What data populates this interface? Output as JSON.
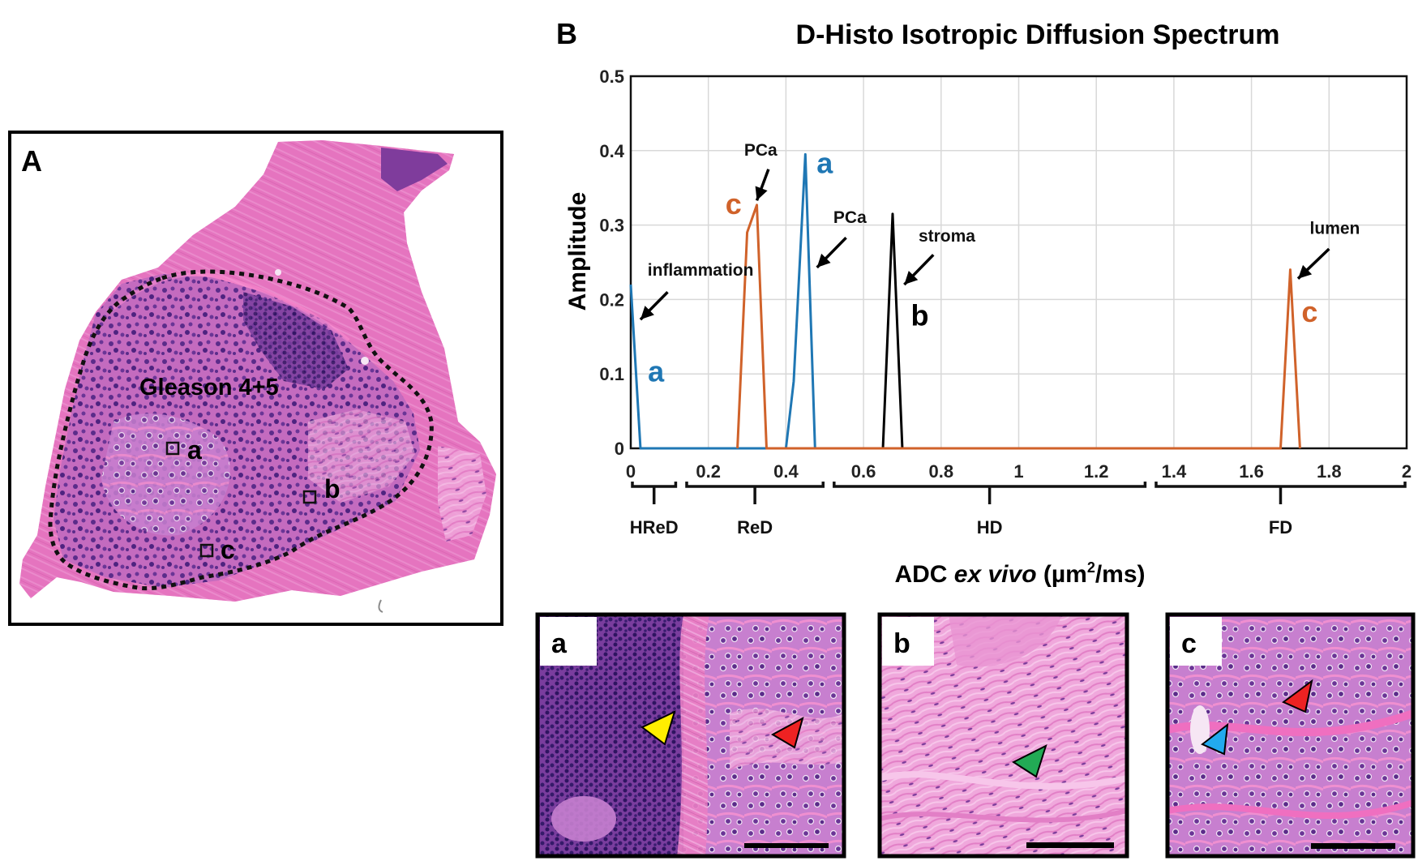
{
  "panel_a": {
    "letter": "A",
    "region_label": "Gleason 4+5",
    "roi_labels": [
      "a",
      "b",
      "c"
    ],
    "colors": {
      "tissue_pink": "#e06fb8",
      "tumor_purple": "#9a5cb8",
      "outline": "#111111"
    }
  },
  "panel_b": {
    "letter": "B",
    "colors": {
      "a": "#1f77b4",
      "b": "#000000",
      "c": "#d0622a"
    }
  },
  "chart_data": {
    "type": "line",
    "title": "D-Histo Isotropic Diffusion Spectrum",
    "xlabel_prefix": "ADC ",
    "xlabel_italic": "ex vivo",
    "xlabel_unit_a": " (µm",
    "xlabel_sup": "2",
    "xlabel_unit_b": "/ms)",
    "ylabel": "Amplitude",
    "xlim": [
      0,
      2
    ],
    "ylim": [
      0,
      0.5
    ],
    "grid": true,
    "xticks": [
      0,
      0.2,
      0.4,
      0.6,
      0.8,
      1,
      1.2,
      1.4,
      1.6,
      1.8,
      2
    ],
    "xtick_labels": [
      "0",
      "0.2",
      "0.4",
      "0.6",
      "0.8",
      "1",
      "1.2",
      "1.4",
      "1.6",
      "1.8",
      "2"
    ],
    "yticks": [
      0,
      0.1,
      0.2,
      0.3,
      0.4,
      0.5
    ],
    "ytick_labels": [
      "0",
      "0.1",
      "0.2",
      "0.3",
      "0.4",
      "0.5"
    ],
    "series": [
      {
        "name": "a",
        "color": "#1f77b4",
        "x": [
          0,
          0.025,
          0.4,
          0.42,
          0.45,
          0.475
        ],
        "y": [
          0.22,
          0,
          0,
          0.09,
          0.395,
          0
        ]
      },
      {
        "name": "b",
        "color": "#000000",
        "x": [
          0.65,
          0.675,
          0.7
        ],
        "y": [
          0,
          0.315,
          0
        ]
      },
      {
        "name": "c",
        "color": "#d0622a",
        "x": [
          0.275,
          0.3,
          0.325,
          0.35,
          0.65,
          0.7,
          1.675,
          1.7,
          1.725
        ],
        "y": [
          0,
          0.29,
          0.327,
          0,
          0,
          0,
          0,
          0.24,
          0
        ]
      }
    ],
    "curve_labels": [
      {
        "text": "a",
        "series": "a",
        "x": 0.5,
        "y": 0.37
      },
      {
        "text": "a",
        "series": "a",
        "x": 0.065,
        "y": 0.09
      },
      {
        "text": "c",
        "series": "c",
        "x": 0.265,
        "y": 0.315
      },
      {
        "text": "c",
        "series": "c",
        "x": 1.75,
        "y": 0.17
      },
      {
        "text": "b",
        "series": "b",
        "x": 0.745,
        "y": 0.165
      }
    ],
    "annotations": [
      {
        "text": "inflammation",
        "x": 0.18,
        "y": 0.232,
        "ax": 0.095,
        "ay": 0.21,
        "tx": 0.025,
        "ty": 0.173
      },
      {
        "text": "PCa",
        "x": 0.335,
        "y": 0.393,
        "ax": 0.355,
        "ay": 0.375,
        "tx": 0.325,
        "ty": 0.333
      },
      {
        "text": "PCa",
        "x": 0.565,
        "y": 0.303,
        "ax": 0.555,
        "ay": 0.283,
        "tx": 0.48,
        "ty": 0.243
      },
      {
        "text": "stroma",
        "x": 0.815,
        "y": 0.278,
        "ax": 0.78,
        "ay": 0.26,
        "tx": 0.705,
        "ty": 0.22
      },
      {
        "text": "lumen",
        "x": 1.815,
        "y": 0.288,
        "ax": 1.8,
        "ay": 0.268,
        "tx": 1.72,
        "ty": 0.228
      }
    ],
    "regions": [
      {
        "label": "HReD",
        "from": 0,
        "to": 0.12
      },
      {
        "label": "ReD",
        "from": 0.14,
        "to": 0.5
      },
      {
        "label": "HD",
        "from": 0.52,
        "to": 1.33
      },
      {
        "label": "FD",
        "from": 1.35,
        "to": 2
      }
    ]
  },
  "insets": [
    {
      "label": "a",
      "arrows": [
        {
          "color": "#ffee00",
          "name": "yellow-arrowhead-icon"
        },
        {
          "color": "#ee2222",
          "name": "red-arrowhead-icon"
        }
      ]
    },
    {
      "label": "b",
      "arrows": [
        {
          "color": "#22aa55",
          "name": "green-arrowhead-icon"
        }
      ]
    },
    {
      "label": "c",
      "arrows": [
        {
          "color": "#ee2222",
          "name": "red-arrowhead-icon"
        },
        {
          "color": "#22aaee",
          "name": "blue-arrowhead-icon"
        }
      ]
    }
  ]
}
